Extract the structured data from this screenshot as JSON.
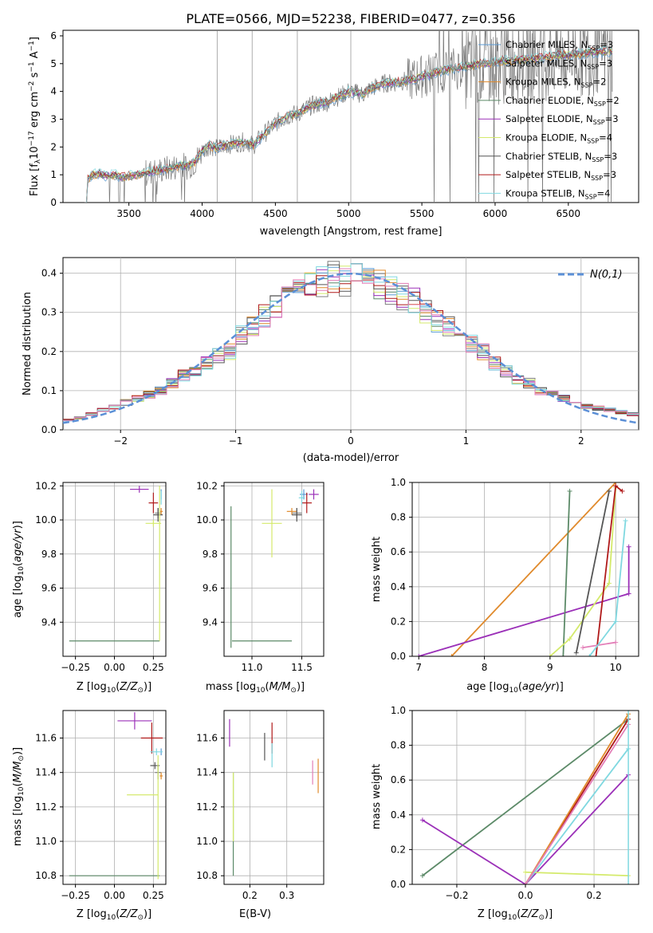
{
  "figure": {
    "title": "PLATE=0566, MJD=52238, FIBERID=0477, z=0.356"
  },
  "colors": {
    "Chabrier MILES": "#5b9bd5",
    "Salpeter MILES": "#7f7f7f",
    "Kroupa MILES": "#e08a2c",
    "Chabrier ELODIE": "#5c8a68",
    "Salpeter ELODIE": "#9b30b8",
    "Kroupa ELODIE": "#d4ea6b",
    "Chabrier STELIB": "#555555",
    "Salpeter STELIB": "#b01a1a",
    "Kroupa STELIB": "#7fd8e0",
    "extra": "#e37fb8",
    "normal_curve": "#5b8fd6"
  },
  "chart_data": [
    {
      "id": "spectrum",
      "type": "line",
      "title": "PLATE=0566, MJD=52238, FIBERID=0477, z=0.356",
      "xlabel": "wavelength [Angstrom, rest frame]",
      "ylabel": "Flux [f_λ 10^-17 erg cm^-2 s^-1 A^-1]",
      "xlim": [
        3050,
        6980
      ],
      "ylim": [
        0,
        6.2
      ],
      "xticks": [
        3500,
        4000,
        4500,
        5000,
        5500,
        6000,
        6500
      ],
      "yticks": [
        0,
        1,
        2,
        3,
        4,
        5,
        6
      ],
      "grid": false,
      "legend_position": "upper right",
      "x": [
        3200,
        3220,
        3250,
        3300,
        3350,
        3400,
        3450,
        3500,
        3550,
        3600,
        3650,
        3700,
        3750,
        3800,
        3850,
        3900,
        3950,
        4000,
        4050,
        4100,
        4150,
        4200,
        4250,
        4300,
        4350,
        4400,
        4450,
        4500,
        4550,
        4600,
        4650,
        4700,
        4750,
        4800,
        4850,
        4900,
        4950,
        5000,
        5050,
        5100,
        5150,
        5200,
        5250,
        5300,
        5350,
        5400,
        5450,
        5500,
        5550,
        5600,
        5650,
        5700,
        5750,
        5800,
        5850,
        5900,
        5950,
        6000,
        6050,
        6100,
        6150,
        6200,
        6250,
        6300,
        6350,
        6400,
        6450,
        6500,
        6550,
        6600,
        6650,
        6700,
        6750,
        6800
      ],
      "series": [
        {
          "name": "Chabrier MILES, N_SSP=3",
          "values": [
            0.0,
            0.85,
            1.0,
            1.05,
            0.95,
            1.0,
            0.92,
            0.95,
            1.0,
            1.05,
            1.1,
            1.15,
            1.2,
            1.25,
            1.35,
            1.3,
            1.45,
            1.85,
            2.05,
            1.95,
            2.05,
            2.1,
            2.15,
            2.2,
            2.05,
            2.35,
            2.6,
            2.85,
            3.0,
            3.15,
            3.2,
            3.35,
            3.5,
            3.55,
            3.6,
            3.75,
            3.85,
            4.0,
            3.95,
            3.9,
            4.1,
            4.2,
            4.3,
            4.3,
            4.35,
            4.4,
            4.45,
            4.55,
            4.6,
            4.7,
            4.75,
            4.8,
            4.85,
            4.9,
            4.95,
            5.0,
            5.0,
            5.05,
            5.1,
            5.1,
            5.15,
            5.15,
            5.2,
            5.2,
            5.25,
            5.25,
            5.3,
            5.3,
            5.35,
            5.35,
            5.4,
            5.4,
            5.45,
            5.45
          ]
        },
        {
          "name": "Salpeter MILES, N_SSP=3"
        },
        {
          "name": "Kroupa MILES, N_SSP=2"
        },
        {
          "name": "Chabrier ELODIE, N_SSP=2"
        },
        {
          "name": "Salpeter ELODIE, N_SSP=3"
        },
        {
          "name": "Kroupa ELODIE, N_SSP=4"
        },
        {
          "name": "Chabrier STELIB, N_SSP=3"
        },
        {
          "name": "Salpeter STELIB, N_SSP=3"
        },
        {
          "name": "Kroupa STELIB, N_SSP=4"
        }
      ]
    },
    {
      "id": "residuals",
      "type": "line",
      "xlabel": "(data-model)/error",
      "ylabel": "Normed distribution",
      "xlim": [
        -2.5,
        2.5
      ],
      "ylim": [
        0,
        0.44
      ],
      "xticks": [
        -2,
        -1,
        0,
        1,
        2
      ],
      "yticks": [
        0.0,
        0.1,
        0.2,
        0.3,
        0.4
      ],
      "grid": true,
      "legend_position": "upper right",
      "legend": [
        "N(0,1)"
      ],
      "bin_width": 0.1,
      "histogram_bins_x": [
        -2.5,
        -2.4,
        -2.3,
        -2.2,
        -2.1,
        -2.0,
        -1.9,
        -1.8,
        -1.7,
        -1.6,
        -1.5,
        -1.4,
        -1.3,
        -1.2,
        -1.1,
        -1.0,
        -0.9,
        -0.8,
        -0.7,
        -0.6,
        -0.5,
        -0.4,
        -0.3,
        -0.2,
        -0.1,
        0.0,
        0.1,
        0.2,
        0.3,
        0.4,
        0.5,
        0.6,
        0.7,
        0.8,
        0.9,
        1.0,
        1.1,
        1.2,
        1.3,
        1.4,
        1.5,
        1.6,
        1.7,
        1.8,
        1.9,
        2.0,
        2.1,
        2.2,
        2.3,
        2.4
      ],
      "histogram_values": [
        0.025,
        0.03,
        0.04,
        0.05,
        0.06,
        0.07,
        0.08,
        0.09,
        0.1,
        0.12,
        0.14,
        0.15,
        0.17,
        0.19,
        0.2,
        0.24,
        0.26,
        0.29,
        0.31,
        0.33,
        0.36,
        0.37,
        0.38,
        0.39,
        0.38,
        0.4,
        0.39,
        0.37,
        0.36,
        0.34,
        0.33,
        0.3,
        0.28,
        0.26,
        0.24,
        0.22,
        0.2,
        0.17,
        0.15,
        0.13,
        0.12,
        0.1,
        0.09,
        0.08,
        0.07,
        0.06,
        0.055,
        0.05,
        0.045,
        0.04
      ]
    },
    {
      "id": "age-vs-Z",
      "type": "scatter",
      "xlabel": "Z [log10(Z/Z⊙)]",
      "ylabel": "age [log10(age/yr)]",
      "xlim": [
        -0.33,
        0.33
      ],
      "ylim": [
        9.2,
        10.22
      ],
      "xticks": [
        -0.25,
        0.0,
        0.25
      ],
      "yticks": [
        9.4,
        9.6,
        9.8,
        10.0,
        10.2
      ],
      "grid": true
    },
    {
      "id": "age-vs-mass",
      "type": "scatter",
      "xlabel": "mass [log10(M/M⊙)]",
      "xlim": [
        10.72,
        11.72
      ],
      "ylim": [
        9.2,
        10.22
      ],
      "xticks": [
        11.0,
        11.5
      ],
      "yticks": [
        9.4,
        9.6,
        9.8,
        10.0,
        10.2
      ],
      "grid": true
    },
    {
      "id": "weight-vs-age",
      "type": "line",
      "xlabel": "age [log10(age/yr)]",
      "ylabel": "mass weight",
      "xlim": [
        6.9,
        10.35
      ],
      "ylim": [
        0,
        1
      ],
      "xticks": [
        7,
        8,
        9,
        10
      ],
      "yticks": [
        0.0,
        0.2,
        0.4,
        0.6,
        0.8,
        1.0
      ],
      "grid": true
    },
    {
      "id": "mass-vs-Z",
      "type": "scatter",
      "xlabel": "Z [log10(Z/Z⊙)]",
      "ylabel": "mass [log10(M/M⊙)]",
      "xlim": [
        -0.33,
        0.33
      ],
      "ylim": [
        10.75,
        11.76
      ],
      "xticks": [
        -0.25,
        0.0,
        0.25
      ],
      "yticks": [
        10.8,
        11.0,
        11.2,
        11.4,
        11.6
      ],
      "grid": true
    },
    {
      "id": "mass-vs-ebv",
      "type": "scatter",
      "xlabel": "E(B-V)",
      "xlim": [
        0.13,
        0.4
      ],
      "ylim": [
        10.75,
        11.76
      ],
      "xticks": [
        0.2,
        0.3
      ],
      "yticks": [
        10.8,
        11.0,
        11.2,
        11.4,
        11.6
      ],
      "grid": true
    },
    {
      "id": "weight-vs-Z",
      "type": "line",
      "xlabel": "Z [log10(Z/Z⊙)]",
      "ylabel": "mass weight",
      "xlim": [
        -0.33,
        0.33
      ],
      "ylim": [
        0,
        1
      ],
      "xticks": [
        -0.2,
        0.0,
        0.2
      ],
      "yticks": [
        0.0,
        0.2,
        0.4,
        0.6,
        0.8,
        1.0
      ],
      "grid": true
    }
  ]
}
